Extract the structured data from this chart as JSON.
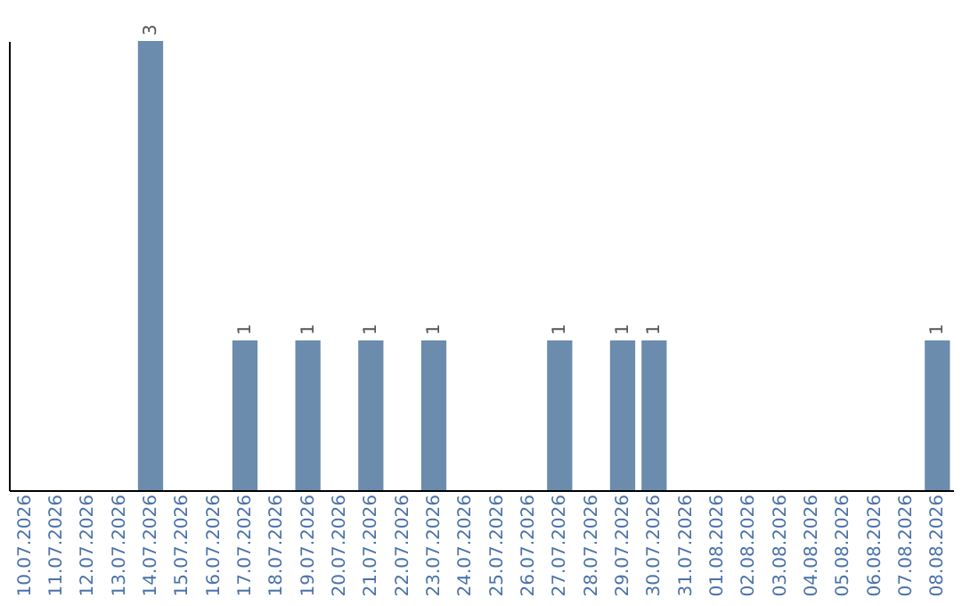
{
  "chart_data": {
    "type": "bar",
    "categories": [
      "10.07.2026",
      "11.07.2026",
      "12.07.2026",
      "13.07.2026",
      "14.07.2026",
      "15.07.2026",
      "16.07.2026",
      "17.07.2026",
      "18.07.2026",
      "19.07.2026",
      "20.07.2026",
      "21.07.2026",
      "22.07.2026",
      "23.07.2026",
      "24.07.2026",
      "25.07.2026",
      "26.07.2026",
      "27.07.2026",
      "28.07.2026",
      "29.07.2026",
      "30.07.2026",
      "31.07.2026",
      "01.08.2026",
      "02.08.2026",
      "03.08.2026",
      "04.08.2026",
      "05.08.2026",
      "06.08.2026",
      "07.08.2026",
      "08.08.2026"
    ],
    "values": [
      0,
      0,
      0,
      0,
      3,
      0,
      0,
      1,
      0,
      1,
      0,
      1,
      0,
      1,
      0,
      0,
      0,
      1,
      0,
      1,
      1,
      0,
      0,
      0,
      0,
      0,
      0,
      0,
      0,
      1
    ],
    "value_labels": [
      null,
      null,
      null,
      null,
      "3",
      null,
      null,
      "1",
      null,
      "1",
      null,
      "1",
      null,
      "1",
      null,
      null,
      null,
      "1",
      null,
      "1",
      "1",
      null,
      null,
      null,
      null,
      null,
      null,
      null,
      null,
      "1"
    ],
    "color": "#6b8cad",
    "grid": false,
    "tick_labels": "x"
  }
}
